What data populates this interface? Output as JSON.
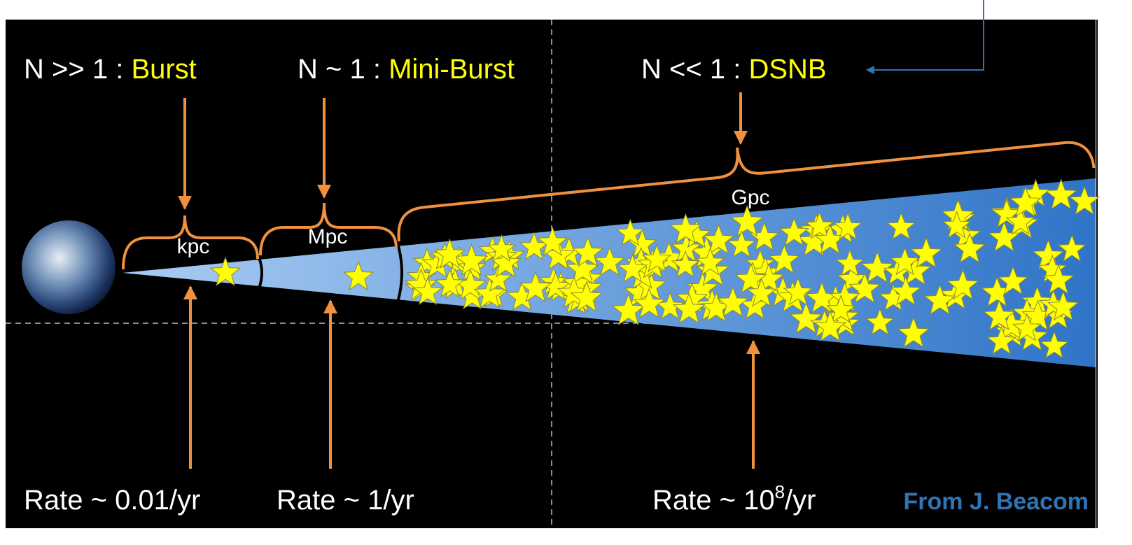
{
  "regimes": [
    {
      "prefix": "N >> 1 :",
      "name": "Burst"
    },
    {
      "prefix": "N ~ 1 :",
      "name": "Mini-Burst"
    },
    {
      "prefix": "N << 1 :",
      "name": "DSNB"
    }
  ],
  "scales": [
    "kpc",
    "Mpc",
    "Gpc"
  ],
  "rates": [
    {
      "text": "Rate ~ 0.01/yr"
    },
    {
      "text": "Rate ~ 1/yr"
    },
    {
      "base": "Rate ~ 10",
      "exponent": "8",
      "unit": "/yr"
    }
  ],
  "credit": "From J. Beacom"
}
